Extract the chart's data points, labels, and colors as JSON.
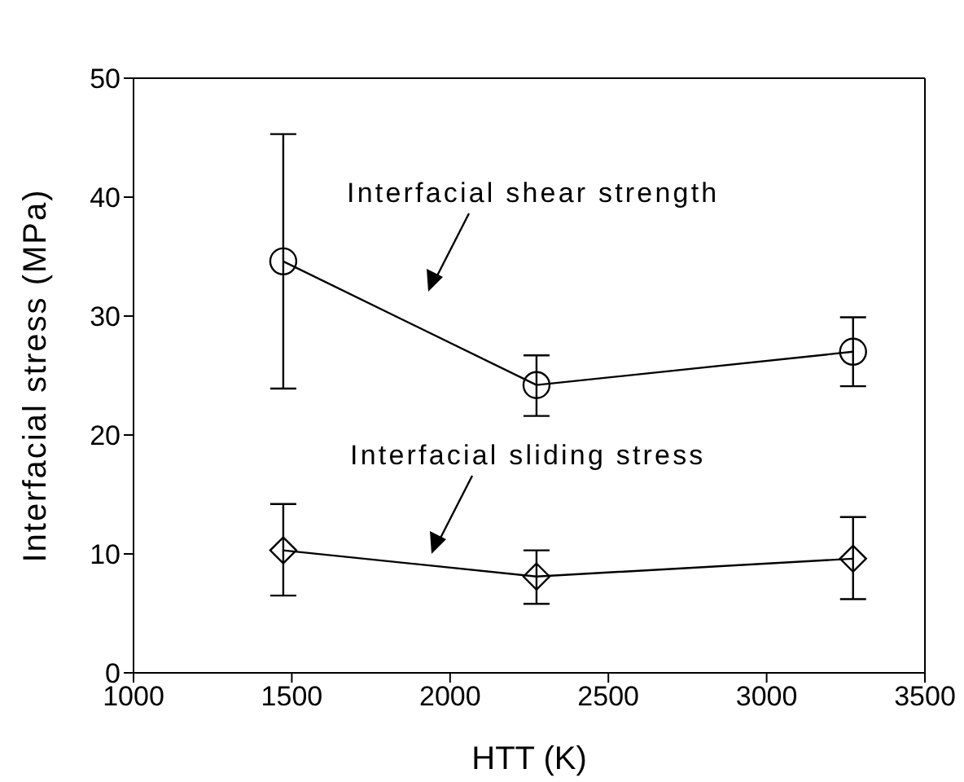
{
  "chart_data": {
    "type": "line",
    "xlabel": "HTT (K)",
    "ylabel": "Interfacial stress (MPa)",
    "x": [
      1473,
      2273,
      3273
    ],
    "series": [
      {
        "color": "#000000",
        "marker": "circle",
        "values": [
          34.6,
          24.2,
          27.0
        ],
        "errors": [
          [
            23.9,
            45.3
          ],
          [
            21.6,
            26.7
          ],
          [
            24.1,
            29.9
          ]
        ]
      },
      {
        "color": "#000000",
        "marker": "diamond",
        "values": [
          10.3,
          8.1,
          9.6
        ],
        "errors": [
          [
            6.5,
            14.2
          ],
          [
            5.8,
            10.3
          ],
          [
            6.2,
            13.1
          ]
        ]
      }
    ],
    "annotations": [
      "Interfacial shear strength",
      "Interfacial sliding stress"
    ],
    "xlim": [
      1000,
      3500
    ],
    "xticks": [
      1000,
      1500,
      2000,
      2500,
      3000,
      3500
    ],
    "ylim": [
      0,
      50
    ],
    "yticks": [
      0,
      10,
      20,
      30,
      40,
      50
    ],
    "grid": false,
    "legend": false
  }
}
